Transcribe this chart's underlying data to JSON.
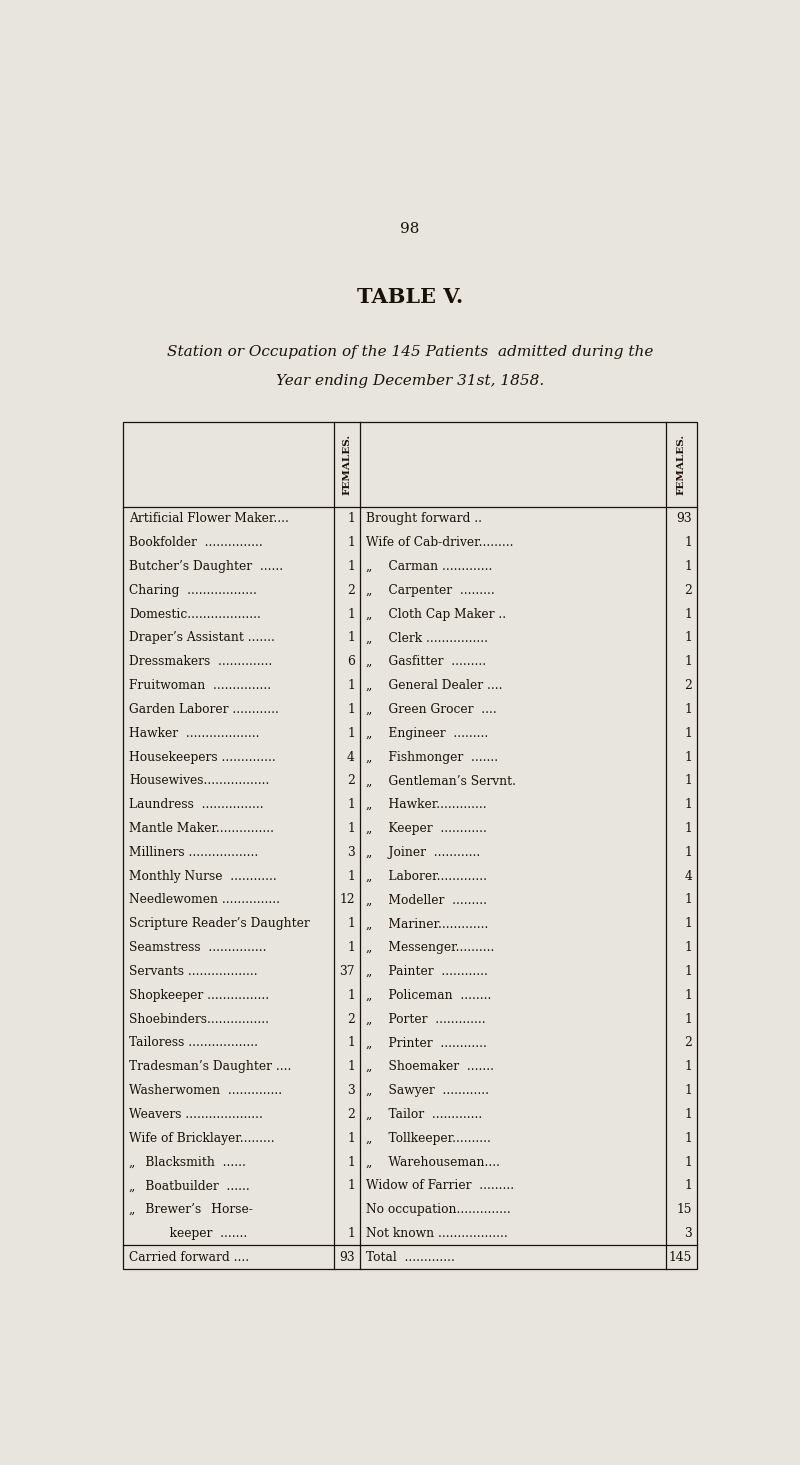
{
  "page_number": "98",
  "title": "TABLE V.",
  "subtitle_line1": "Station or Occupation of the 145 Patients  admitted during the",
  "subtitle_line2": "Year ending December 31st, 1858.",
  "bg_color": "#e8e5de",
  "text_color": "#1a1208",
  "left_rows": [
    [
      "Artificial Flower Maker....",
      "1"
    ],
    [
      "Bookfolder  ...............",
      "1"
    ],
    [
      "Butcher’s Daughter  ......",
      "1"
    ],
    [
      "Charing  ..................",
      "2"
    ],
    [
      "Domestic...................",
      "1"
    ],
    [
      "Draper’s Assistant .......",
      "1"
    ],
    [
      "Dressmakers  ..............",
      "6"
    ],
    [
      "Fruitwoman  ...............",
      "1"
    ],
    [
      "Garden Laborer ............",
      "1"
    ],
    [
      "Hawker  ...................",
      "1"
    ],
    [
      "Housekeepers ..............",
      "4"
    ],
    [
      "Housewives.................",
      "2"
    ],
    [
      "Laundress  ................",
      "1"
    ],
    [
      "Mantle Maker...............",
      "1"
    ],
    [
      "Milliners ..................",
      "3"
    ],
    [
      "Monthly Nurse  ............",
      "1"
    ],
    [
      "Needlewomen ...............",
      "12"
    ],
    [
      "Scripture Reader’s Daughter",
      "1"
    ],
    [
      "Seamstress  ...............",
      "1"
    ],
    [
      "Servants ..................",
      "37"
    ],
    [
      "Shopkeeper ................",
      "1"
    ],
    [
      "Shoebinders................",
      "2"
    ],
    [
      "Tailoress ..................",
      "1"
    ],
    [
      "Tradesman’s Daughter ....",
      "1"
    ],
    [
      "Washerwomen  ..............",
      "3"
    ],
    [
      "Weavers ....................",
      "2"
    ],
    [
      "Wife of Bricklayer.........",
      "1"
    ],
    [
      "„  Blacksmith  ......",
      "1"
    ],
    [
      "„  Boatbuilder  ......",
      "1"
    ],
    [
      "„  Brewer’s  Horse-",
      ""
    ],
    [
      "    keeper  .......",
      "1"
    ],
    [
      "Carried forward ....",
      "93"
    ]
  ],
  "right_rows": [
    [
      "Brought forward ..",
      "93"
    ],
    [
      "Wife of Cab-driver.........",
      "1"
    ],
    [
      "„  Carman .............",
      "1"
    ],
    [
      "„  Carpenter  .........",
      "2"
    ],
    [
      "„  Cloth Cap Maker ..",
      "1"
    ],
    [
      "„  Clerk ................",
      "1"
    ],
    [
      "„  Gasfitter  .........",
      "1"
    ],
    [
      "„  General Dealer ....",
      "2"
    ],
    [
      "„  Green Grocer  ....",
      "1"
    ],
    [
      "„  Engineer  .........",
      "1"
    ],
    [
      "„  Fishmonger  .......",
      "1"
    ],
    [
      "„  Gentleman’s Servnt.",
      "1"
    ],
    [
      "„  Hawker.............",
      "1"
    ],
    [
      "„  Keeper  ............",
      "1"
    ],
    [
      "„  Joiner  ............",
      "1"
    ],
    [
      "„  Laborer.............",
      "4"
    ],
    [
      "„  Modeller  .........",
      "1"
    ],
    [
      "„  Mariner.............",
      "1"
    ],
    [
      "„  Messenger..........",
      "1"
    ],
    [
      "„  Painter  ............",
      "1"
    ],
    [
      "„  Policeman  ........",
      "1"
    ],
    [
      "„  Porter  .............",
      "1"
    ],
    [
      "„  Printer  ............",
      "2"
    ],
    [
      "„  Shoemaker  .......",
      "1"
    ],
    [
      "„  Sawyer  ............",
      "1"
    ],
    [
      "„  Tailor  .............",
      "1"
    ],
    [
      "„  Tollkeeper..........",
      "1"
    ],
    [
      "„  Warehouseman....",
      "1"
    ],
    [
      "Widow of Farrier  .........",
      "1"
    ],
    [
      "No occupation..............",
      "15"
    ],
    [
      "Not known ..................",
      "3"
    ],
    [
      "Total  .............",
      "145"
    ]
  ]
}
